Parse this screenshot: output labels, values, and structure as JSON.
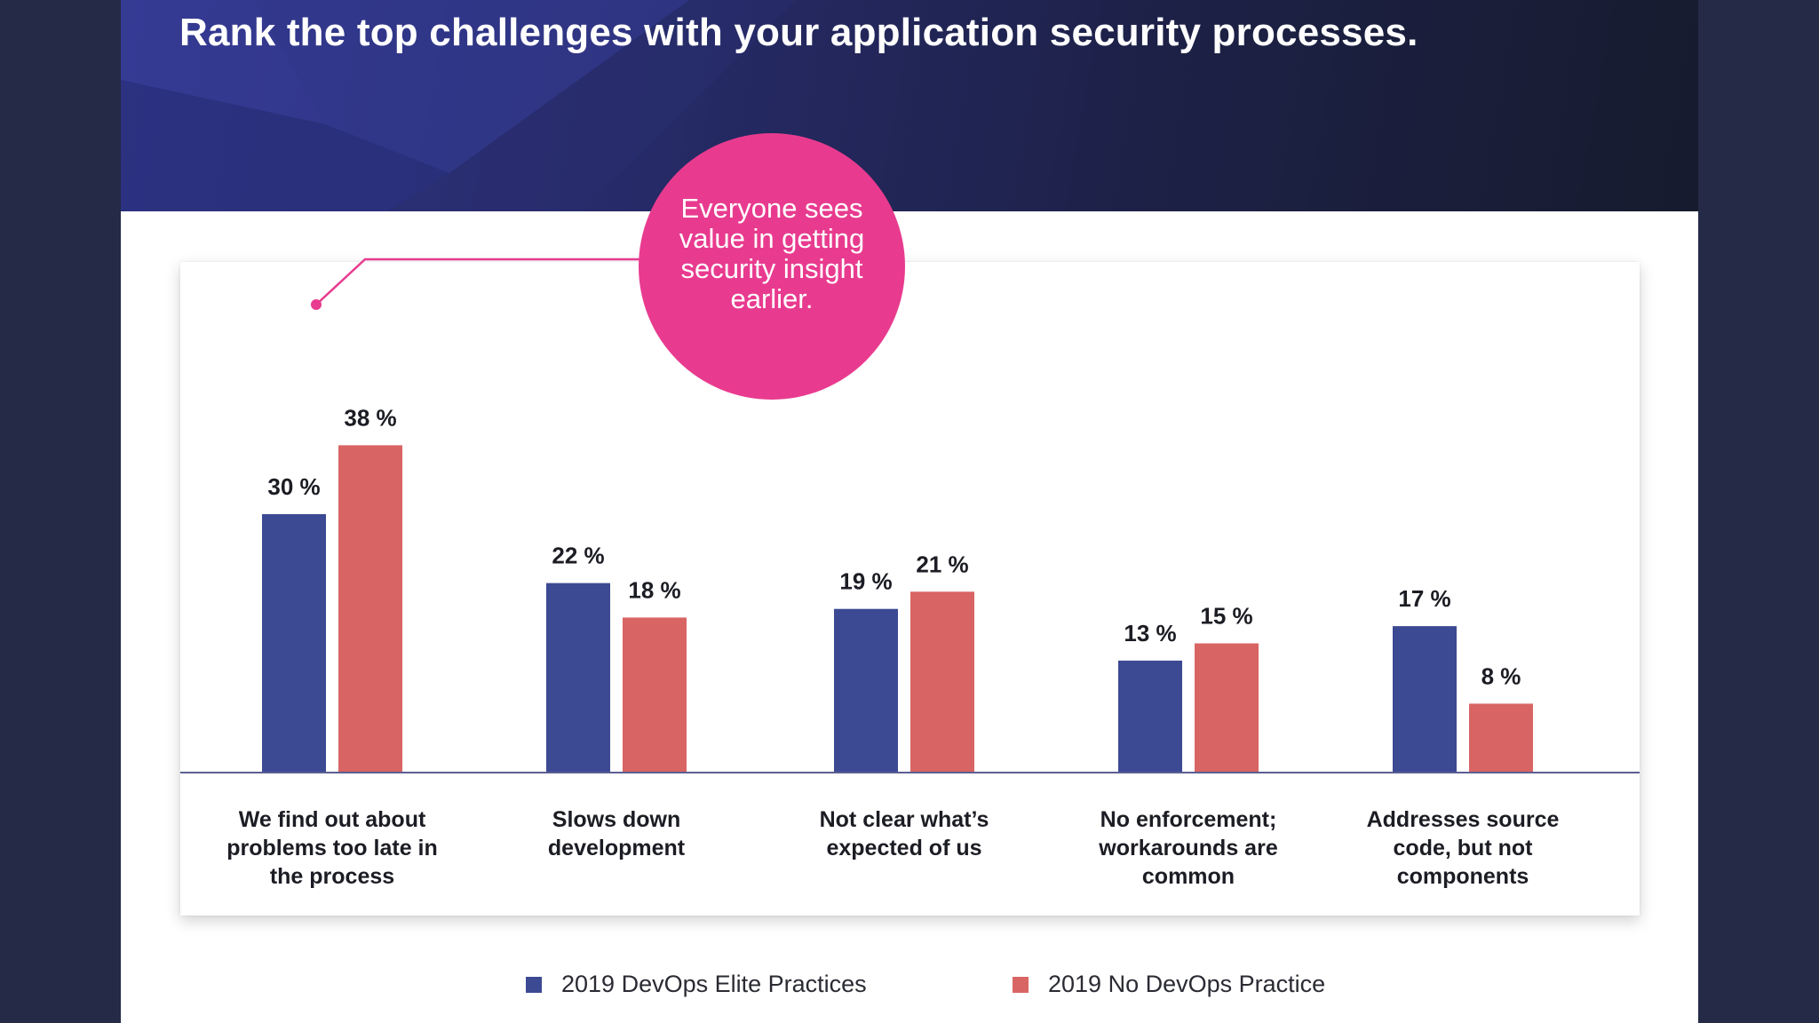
{
  "title": "Rank the top challenges with your application security processes.",
  "callout": {
    "text": "Everyone sees value in getting security insight earlier."
  },
  "colors": {
    "elite": "#3c4993",
    "no_devops": "#d86563",
    "callout": "#e83b8f",
    "banner": "#232760"
  },
  "legend": [
    {
      "label": "2019 DevOps Elite Practices",
      "color": "#3c4993"
    },
    {
      "label": "2019 No DevOps Practice",
      "color": "#d86563"
    }
  ],
  "chart_data": {
    "type": "bar",
    "title": "Rank the top challenges with your application security processes.",
    "xlabel": "",
    "ylabel": "",
    "ylim": [
      0,
      40
    ],
    "grid": false,
    "legend_position": "bottom",
    "categories": [
      "We find out about problems too late in the process",
      "Slows down development",
      "Not clear what’s expected of us",
      "No enforcement; workarounds are common",
      "Addresses source code, but not components"
    ],
    "category_lines": [
      [
        "We find out about",
        "problems too late in",
        "the process"
      ],
      [
        "Slows down",
        "development"
      ],
      [
        "Not clear what’s",
        "expected of us"
      ],
      [
        "No enforcement;",
        "workarounds are",
        "common"
      ],
      [
        "Addresses source",
        "code, but not",
        "components"
      ]
    ],
    "series": [
      {
        "name": "2019 DevOps Elite Practices",
        "values": [
          30,
          22,
          19,
          13,
          17
        ],
        "labels": [
          "30 %",
          "22 %",
          "19 %",
          "13 %",
          "17 %"
        ]
      },
      {
        "name": "2019 No DevOps Practice",
        "values": [
          38,
          18,
          21,
          15,
          8
        ],
        "labels": [
          "38 %",
          "18 %",
          "21 %",
          "15 %",
          "8 %"
        ]
      }
    ]
  }
}
